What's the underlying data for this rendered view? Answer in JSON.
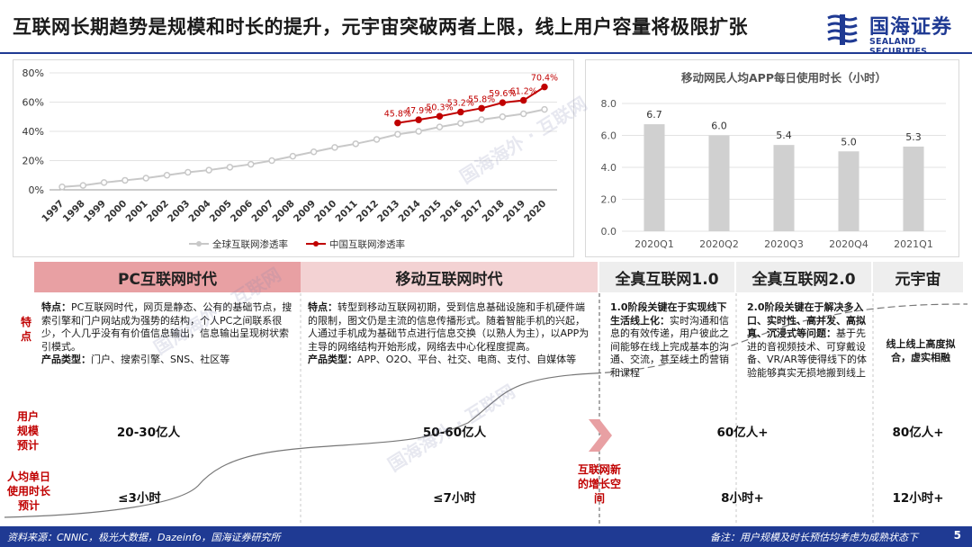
{
  "title": "互联网长期趋势是规模和时长的提升，元宇宙突破两者上限，线上用户容量将极限扩张",
  "logo": {
    "cn": "国海证券",
    "en": "SEALAND SECURITIES"
  },
  "chart_data": [
    {
      "type": "line",
      "x": [
        "1997",
        "1998",
        "1999",
        "2000",
        "2001",
        "2002",
        "2003",
        "2004",
        "2005",
        "2006",
        "2007",
        "2008",
        "2009",
        "2010",
        "2011",
        "2012",
        "2013",
        "2014",
        "2015",
        "2016",
        "2017",
        "2018",
        "2019",
        "2020"
      ],
      "ylim": [
        0,
        80
      ],
      "yticks": [
        "0%",
        "20%",
        "40%",
        "60%",
        "80%"
      ],
      "series": [
        {
          "name": "全球互联网渗透率",
          "color": "#c8c8c8",
          "values": [
            2,
            3,
            5,
            6.5,
            8,
            10,
            12,
            13.5,
            15.5,
            17.5,
            20,
            23,
            26,
            29,
            31.5,
            34.5,
            38,
            40,
            43,
            45.5,
            48,
            50,
            52,
            55
          ]
        },
        {
          "name": "中国互联网渗透率",
          "color": "#c00000",
          "values": [
            null,
            null,
            null,
            null,
            null,
            null,
            null,
            null,
            null,
            null,
            null,
            null,
            null,
            null,
            null,
            null,
            45.8,
            47.9,
            50.3,
            53.2,
            55.8,
            59.6,
            61.2,
            70.4
          ],
          "labels": [
            "45.8%",
            "47.9%",
            "50.3%",
            "53.2%",
            "55.8%",
            "59.6%",
            "61.2%",
            "70.4%"
          ]
        }
      ],
      "legend": "bottom",
      "grid": true
    },
    {
      "type": "bar",
      "title": "移动网民人均APP每日使用时长（小时）",
      "categories": [
        "2020Q1",
        "2020Q2",
        "2020Q3",
        "2020Q4",
        "2021Q1"
      ],
      "values": [
        6.7,
        6.0,
        5.4,
        5.0,
        5.3
      ],
      "labels": [
        "6.7",
        "6.0",
        "5.4",
        "5.0",
        "5.3"
      ],
      "ylim": [
        0,
        8
      ],
      "yticks": [
        "0.0",
        "2.0",
        "4.0",
        "6.0",
        "8.0"
      ],
      "color": "#d0d0d0",
      "grid": true
    }
  ],
  "eras": [
    {
      "label": "PC互联网时代",
      "bg": "#e8a0a3"
    },
    {
      "label": "移动互联网时代",
      "bg": "#f3d2d3"
    },
    {
      "label": "全真互联网1.0",
      "bg": "#eeeeee"
    },
    {
      "label": "全真互联网2.0",
      "bg": "#eeeeee"
    },
    {
      "label": "元宇宙",
      "bg": "#eeeeee"
    }
  ],
  "rows": {
    "features_label": "特点",
    "users_label": "用户规模预计",
    "time_label": "人均单日使用时长预计"
  },
  "features": {
    "pc_head": "特点：",
    "pc_body": "PC互联网时代，网页是静态、公有的基础节点，搜索引擎和门户网站成为强势的结构，个人PC之间联系很少，个人几乎没有有价值信息输出，信息输出呈现树状索引模式。",
    "pc_type_head": "产品类型：",
    "pc_type_body": "门户、搜索引擎、SNS、社区等",
    "mobile_head": "特点：",
    "mobile_body": "转型到移动互联网初期，受到信息基础设施和手机硬件端的限制，图文仍是主流的信息传播形式。随着智能手机的兴起，人通过手机成为基础节点进行信息交换（以熟人为主），以APP为主导的网络结构开始形成，网络去中心化程度提高。",
    "mobile_type_head": "产品类型：",
    "mobile_type_body": "APP、O2O、平台、社交、电商、支付、自媒体等",
    "v1_head": "1.0阶段关键在于实现线下生活线上化：",
    "v1_body": "实时沟通和信息的有效传递，用户彼此之间能够在线上完成基本的沟通、交流，甚至线上的营销和课程",
    "v2_head": "2.0阶段关键在于解决多入口、实时性、高并发、高拟真、沉浸式等问题：",
    "v2_body": "基于先进的音视频技术、可穿戴设备、VR/AR等使得线下的体验能够真实无损地搬到线上",
    "meta_body": "线上线上高度拟合，虚实相融"
  },
  "users": [
    "20-30亿人",
    "50-60亿人",
    "60亿人+",
    "80亿人+"
  ],
  "times": [
    "≤3小时",
    "≤7小时",
    "8小时+",
    "12小时+"
  ],
  "new_space": "互联网新的增长空间",
  "watermarks": [
    "国海海外 · 互联网",
    "国海海外 · 互联网",
    "国海海外 · 互联网"
  ],
  "footer": {
    "source": "资料来源：CNNIC，极光大数据，Dazeinfo，国海证券研究所",
    "note": "备注：用户规模及时长预估均考虑为成熟状态下",
    "page": "5"
  }
}
